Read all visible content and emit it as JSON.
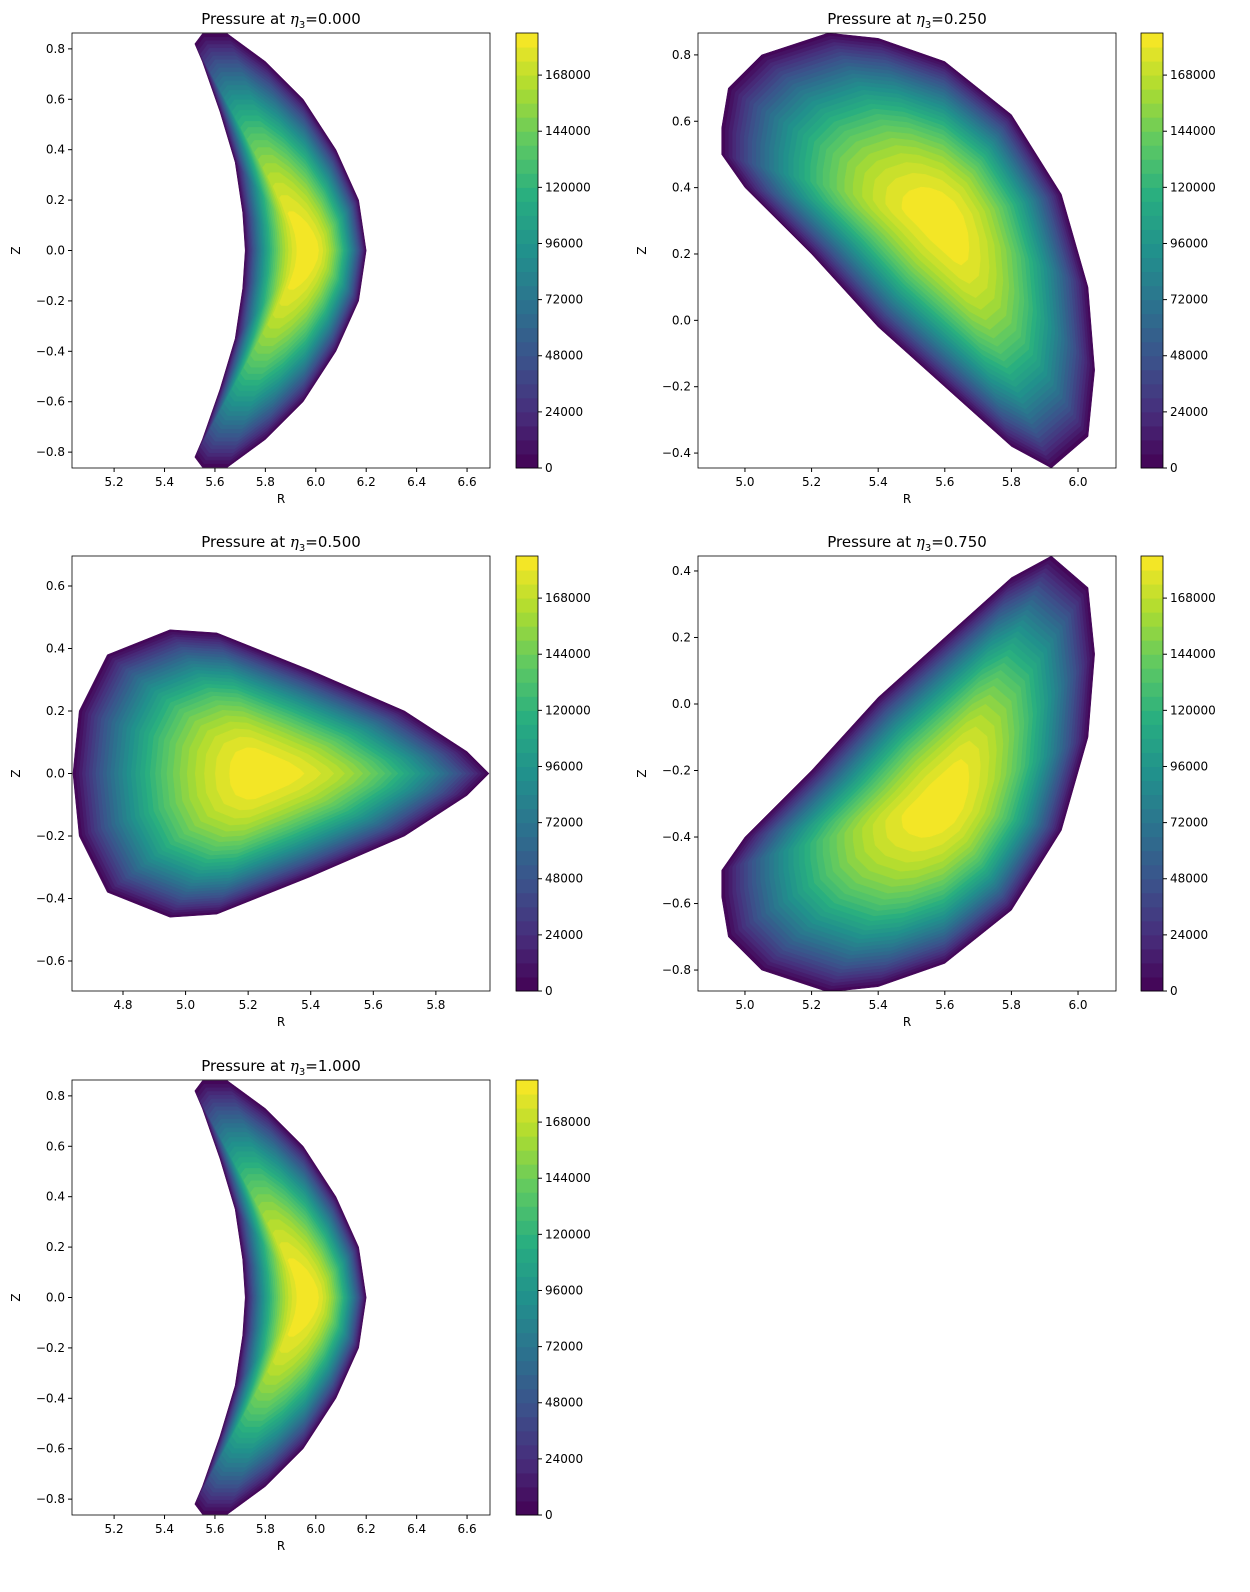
{
  "chart_data": [
    {
      "type": "contour",
      "title": {
        "prefix": "Pressure at ",
        "symbol": "η",
        "subscript": "3",
        "suffix": "=0.000"
      },
      "xlabel": "R",
      "ylabel": "Z",
      "xlim": [
        5.033,
        6.691
      ],
      "ylim": [
        -0.863,
        0.863
      ],
      "xticks": [
        5.2,
        5.4,
        5.6,
        5.8,
        {
          "value": 6,
          "label": "6.0"
        },
        6.2,
        6.4,
        6.6
      ],
      "yticks": [
        {
          "value": -0.8,
          "label": "−0.8"
        },
        {
          "value": -0.6,
          "label": "−0.6"
        },
        {
          "value": -0.4,
          "label": "−0.4"
        },
        {
          "value": -0.2,
          "label": "−0.2"
        },
        {
          "value": 0,
          "label": "0.0"
        },
        0.2,
        0.4,
        0.6,
        0.8
      ],
      "boundary": {
        "r": [
          5.52,
          5.55,
          5.65,
          5.8,
          5.95,
          6.08,
          6.17,
          6.2,
          6.17,
          6.08,
          5.95,
          5.8,
          5.65,
          5.55,
          5.52,
          5.55,
          5.62,
          5.68,
          5.71,
          5.72,
          5.71,
          5.68,
          5.62,
          5.55
        ],
        "z": [
          0.82,
          0.86,
          0.86,
          0.75,
          0.6,
          0.4,
          0.2,
          0,
          -0.2,
          -0.4,
          -0.6,
          -0.75,
          -0.86,
          -0.86,
          -0.82,
          -0.75,
          -0.55,
          -0.35,
          -0.15,
          0,
          0.15,
          0.35,
          0.55,
          0.75
        ]
      },
      "peak": {
        "r": 5.97,
        "z": 0
      },
      "colormap": "viridis",
      "clim": [
        0,
        186000
      ],
      "cticks": [
        0,
        24000,
        48000,
        72000,
        96000,
        120000,
        144000,
        168000
      ]
    },
    {
      "type": "contour",
      "title": {
        "prefix": "Pressure at ",
        "symbol": "η",
        "subscript": "3",
        "suffix": "=0.250"
      },
      "xlabel": "R",
      "ylabel": "Z",
      "xlim": [
        4.859,
        6.114
      ],
      "ylim": [
        -0.445,
        0.866
      ],
      "xticks": [
        {
          "value": 5,
          "label": "5.0"
        },
        5.2,
        5.4,
        5.6,
        5.8,
        {
          "value": 6,
          "label": "6.0"
        }
      ],
      "yticks": [
        {
          "value": -0.4,
          "label": "−0.4"
        },
        {
          "value": -0.2,
          "label": "−0.2"
        },
        {
          "value": 0,
          "label": "0.0"
        },
        0.2,
        0.4,
        0.6,
        0.8
      ],
      "boundary": {
        "r": [
          4.93,
          4.95,
          5.05,
          5.25,
          5.4,
          5.6,
          5.8,
          5.95,
          6.03,
          6.05,
          6.03,
          5.92,
          5.8,
          5.6,
          5.4,
          5.2,
          5.0,
          4.93
        ],
        "z": [
          0.58,
          0.7,
          0.8,
          0.866,
          0.85,
          0.78,
          0.62,
          0.38,
          0.1,
          -0.15,
          -0.35,
          -0.445,
          -0.38,
          -0.2,
          -0.02,
          0.2,
          0.4,
          0.5
        ]
      },
      "peak": {
        "r": 5.59,
        "z": 0.3
      },
      "colormap": "viridis",
      "clim": [
        0,
        186000
      ],
      "cticks": [
        0,
        24000,
        48000,
        72000,
        96000,
        120000,
        144000,
        168000
      ]
    },
    {
      "type": "contour",
      "title": {
        "prefix": "Pressure at ",
        "symbol": "η",
        "subscript": "3",
        "suffix": "=0.500"
      },
      "xlabel": "R",
      "ylabel": "Z",
      "xlim": [
        4.637,
        5.973
      ],
      "ylim": [
        -0.696,
        0.696
      ],
      "xticks": [
        4.8,
        {
          "value": 5,
          "label": "5.0"
        },
        5.2,
        5.4,
        5.6,
        5.8
      ],
      "yticks": [
        {
          "value": -0.6,
          "label": "−0.6"
        },
        {
          "value": -0.4,
          "label": "−0.4"
        },
        {
          "value": -0.2,
          "label": "−0.2"
        },
        {
          "value": 0,
          "label": "0.0"
        },
        0.2,
        0.4,
        0.6
      ],
      "boundary": {
        "r": [
          4.64,
          4.66,
          4.75,
          4.95,
          5.1,
          5.4,
          5.7,
          5.9,
          5.97,
          5.9,
          5.7,
          5.4,
          5.1,
          4.95,
          4.75,
          4.66
        ],
        "z": [
          0,
          0.2,
          0.38,
          0.46,
          0.45,
          0.33,
          0.2,
          0.07,
          0,
          -0.07,
          -0.2,
          -0.33,
          -0.45,
          -0.46,
          -0.38,
          -0.2
        ]
      },
      "peak": {
        "r": 5.25,
        "z": 0
      },
      "colormap": "viridis",
      "clim": [
        0,
        186000
      ],
      "cticks": [
        0,
        24000,
        48000,
        72000,
        96000,
        120000,
        144000,
        168000
      ]
    },
    {
      "type": "contour",
      "title": {
        "prefix": "Pressure at ",
        "symbol": "η",
        "subscript": "3",
        "suffix": "=0.750"
      },
      "xlabel": "R",
      "ylabel": "Z",
      "xlim": [
        4.859,
        6.114
      ],
      "ylim": [
        -0.863,
        0.445
      ],
      "xticks": [
        {
          "value": 5,
          "label": "5.0"
        },
        5.2,
        5.4,
        5.6,
        5.8,
        {
          "value": 6,
          "label": "6.0"
        }
      ],
      "yticks": [
        {
          "value": -0.8,
          "label": "−0.8"
        },
        {
          "value": -0.6,
          "label": "−0.6"
        },
        {
          "value": -0.4,
          "label": "−0.4"
        },
        {
          "value": -0.2,
          "label": "−0.2"
        },
        {
          "value": 0,
          "label": "0.0"
        },
        0.2,
        0.4
      ],
      "boundary": {
        "r": [
          4.93,
          4.95,
          5.05,
          5.25,
          5.4,
          5.6,
          5.8,
          5.95,
          6.03,
          6.05,
          6.03,
          5.92,
          5.8,
          5.6,
          5.4,
          5.2,
          5.0,
          4.93
        ],
        "z": [
          -0.58,
          -0.7,
          -0.8,
          -0.866,
          -0.85,
          -0.78,
          -0.62,
          -0.38,
          -0.1,
          0.15,
          0.35,
          0.445,
          0.38,
          0.2,
          0.02,
          -0.2,
          -0.4,
          -0.5
        ]
      },
      "peak": {
        "r": 5.59,
        "z": -0.3
      },
      "colormap": "viridis",
      "clim": [
        0,
        186000
      ],
      "cticks": [
        0,
        24000,
        48000,
        72000,
        96000,
        120000,
        144000,
        168000
      ]
    },
    {
      "type": "contour",
      "title": {
        "prefix": "Pressure at ",
        "symbol": "η",
        "subscript": "3",
        "suffix": "=1.000"
      },
      "xlabel": "R",
      "ylabel": "Z",
      "xlim": [
        5.033,
        6.691
      ],
      "ylim": [
        -0.863,
        0.863
      ],
      "xticks": [
        5.2,
        5.4,
        5.6,
        5.8,
        {
          "value": 6,
          "label": "6.0"
        },
        6.2,
        6.4,
        6.6
      ],
      "yticks": [
        {
          "value": -0.8,
          "label": "−0.8"
        },
        {
          "value": -0.6,
          "label": "−0.6"
        },
        {
          "value": -0.4,
          "label": "−0.4"
        },
        {
          "value": -0.2,
          "label": "−0.2"
        },
        {
          "value": 0,
          "label": "0.0"
        },
        0.2,
        0.4,
        0.6,
        0.8
      ],
      "boundary": {
        "r": [
          5.52,
          5.55,
          5.65,
          5.8,
          5.95,
          6.08,
          6.17,
          6.2,
          6.17,
          6.08,
          5.95,
          5.8,
          5.65,
          5.55,
          5.52,
          5.55,
          5.62,
          5.68,
          5.71,
          5.72,
          5.71,
          5.68,
          5.62,
          5.55
        ],
        "z": [
          0.82,
          0.86,
          0.86,
          0.75,
          0.6,
          0.4,
          0.2,
          0,
          -0.2,
          -0.4,
          -0.6,
          -0.75,
          -0.86,
          -0.86,
          -0.82,
          -0.75,
          -0.55,
          -0.35,
          -0.15,
          0,
          0.15,
          0.35,
          0.55,
          0.75
        ]
      },
      "peak": {
        "r": 5.97,
        "z": 0
      },
      "colormap": "viridis",
      "clim": [
        0,
        186000
      ],
      "cticks": [
        0,
        24000,
        48000,
        72000,
        96000,
        120000,
        144000,
        168000
      ]
    }
  ]
}
